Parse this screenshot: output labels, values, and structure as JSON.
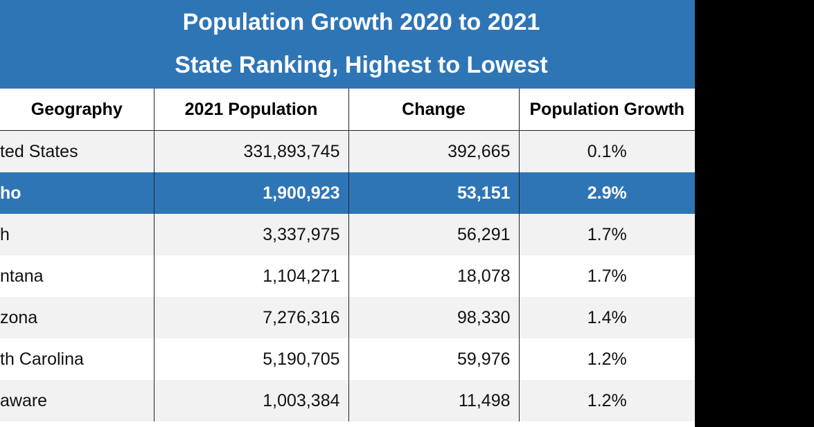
{
  "header": {
    "title": [
      "Population Growth 2020 to 2021",
      "State Ranking, Highest to Lowest"
    ]
  },
  "table": {
    "columns": [
      "Geography",
      "2021 Population",
      "Change",
      "Population Growth"
    ],
    "rows": [
      [
        "ted States",
        "331,893,745",
        "392,665",
        "0.1%"
      ],
      [
        "ho",
        "1,900,923",
        "53,151",
        "2.9%"
      ],
      [
        "h",
        "3,337,975",
        "56,291",
        "1.7%"
      ],
      [
        "ntana",
        "1,104,271",
        "18,078",
        "1.7%"
      ],
      [
        "zona",
        "7,276,316",
        "98,330",
        "1.4%"
      ],
      [
        "th Carolina",
        "5,190,705",
        "59,976",
        "1.2%"
      ],
      [
        "aware",
        "1,003,384",
        "11,498",
        "1.2%"
      ]
    ]
  }
}
